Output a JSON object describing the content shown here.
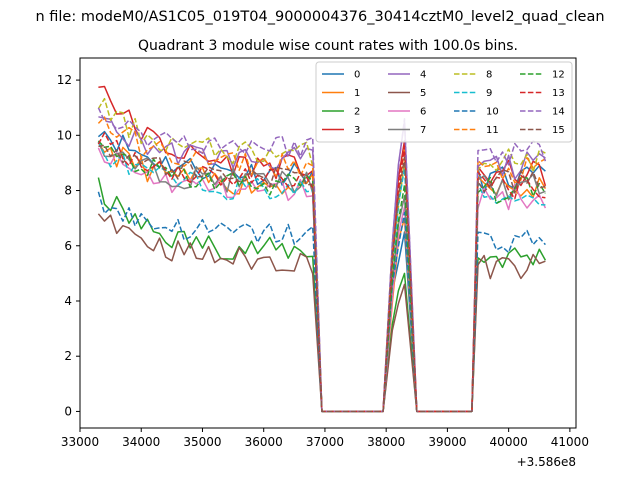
{
  "chart_data": {
    "type": "line",
    "suptitle": "n file: modeM0/AS1C05_019T04_9000004376_30414cztM0_level2_quad_clean",
    "title": "Quadrant 3 module wise count rates with 100.0s bins.",
    "xlabel": "",
    "ylabel": "",
    "x_offset_label": "+3.586e8",
    "xlim": [
      33000,
      41100
    ],
    "ylim": [
      -0.6,
      12.8
    ],
    "xticks": [
      33000,
      34000,
      35000,
      36000,
      37000,
      38000,
      39000,
      40000,
      41000
    ],
    "xtick_labels": [
      "33000",
      "34000",
      "35000",
      "36000",
      "37000",
      "38000",
      "39000",
      "40000",
      "41000"
    ],
    "yticks": [
      0,
      2,
      4,
      6,
      8,
      10,
      12
    ],
    "ytick_labels": [
      "0",
      "2",
      "4",
      "6",
      "8",
      "10",
      "12"
    ],
    "grid": false,
    "legend_position": "top-right",
    "legend_columns": 4,
    "segments": [
      {
        "x_start": 33300,
        "x_end": 36800
      },
      {
        "x_start": 38100,
        "x_end": 38300
      },
      {
        "x_start": 39500,
        "x_end": 40650
      }
    ],
    "gaps": [
      {
        "ramp_down": [
          36800,
          36950
        ],
        "zero_until": 37950,
        "ramp_up_to": 38100
      },
      {
        "ramp_down": [
          38300,
          38500
        ],
        "zero_until": 39400,
        "ramp_up_to": 39500
      }
    ],
    "series": [
      {
        "name": "0",
        "color": "#1f77b4",
        "dash": "solid",
        "base": 8.6,
        "start_excess": 1.8,
        "peak": 6.5
      },
      {
        "name": "1",
        "color": "#ff7f0e",
        "dash": "solid",
        "base": 8.2,
        "start_excess": 1.6,
        "peak": 7.0
      },
      {
        "name": "2",
        "color": "#2ca02c",
        "dash": "solid",
        "base": 5.8,
        "start_excess": 2.3,
        "peak": 5.0
      },
      {
        "name": "3",
        "color": "#d62728",
        "dash": "solid",
        "base": 8.8,
        "start_excess": 3.3,
        "peak": 9.8
      },
      {
        "name": "4",
        "color": "#9467bd",
        "dash": "solid",
        "base": 9.1,
        "start_excess": 1.5,
        "peak": 10.5
      },
      {
        "name": "5",
        "color": "#8c564b",
        "dash": "solid",
        "base": 5.4,
        "start_excess": 2.2,
        "peak": 4.6
      },
      {
        "name": "6",
        "color": "#e377c2",
        "dash": "solid",
        "base": 8.0,
        "start_excess": 1.4,
        "peak": 7.4
      },
      {
        "name": "7",
        "color": "#7f7f7f",
        "dash": "solid",
        "base": 8.3,
        "start_excess": 1.3,
        "peak": 7.8
      },
      {
        "name": "8",
        "color": "#bcbd22",
        "dash": "dashed",
        "base": 9.3,
        "start_excess": 1.9,
        "peak": 9.0
      },
      {
        "name": "9",
        "color": "#17becf",
        "dash": "dashed",
        "base": 8.0,
        "start_excess": 1.6,
        "peak": 8.8
      },
      {
        "name": "10",
        "color": "#1f77b4",
        "dash": "dashed",
        "base": 6.4,
        "start_excess": 1.3,
        "peak": 7.2
      },
      {
        "name": "11",
        "color": "#ff7f0e",
        "dash": "dashed",
        "base": 8.9,
        "start_excess": 1.8,
        "peak": 9.5
      },
      {
        "name": "12",
        "color": "#2ca02c",
        "dash": "dashed",
        "base": 8.2,
        "start_excess": 1.6,
        "peak": 8.2
      },
      {
        "name": "13",
        "color": "#d62728",
        "dash": "dashed",
        "base": 8.4,
        "start_excess": 1.7,
        "peak": 9.6
      },
      {
        "name": "14",
        "color": "#9467bd",
        "dash": "dashed",
        "base": 9.6,
        "start_excess": 1.2,
        "peak": 10.6
      },
      {
        "name": "15",
        "color": "#8c564b",
        "dash": "dashed",
        "base": 8.5,
        "start_excess": 1.5,
        "peak": 9.2
      }
    ]
  }
}
